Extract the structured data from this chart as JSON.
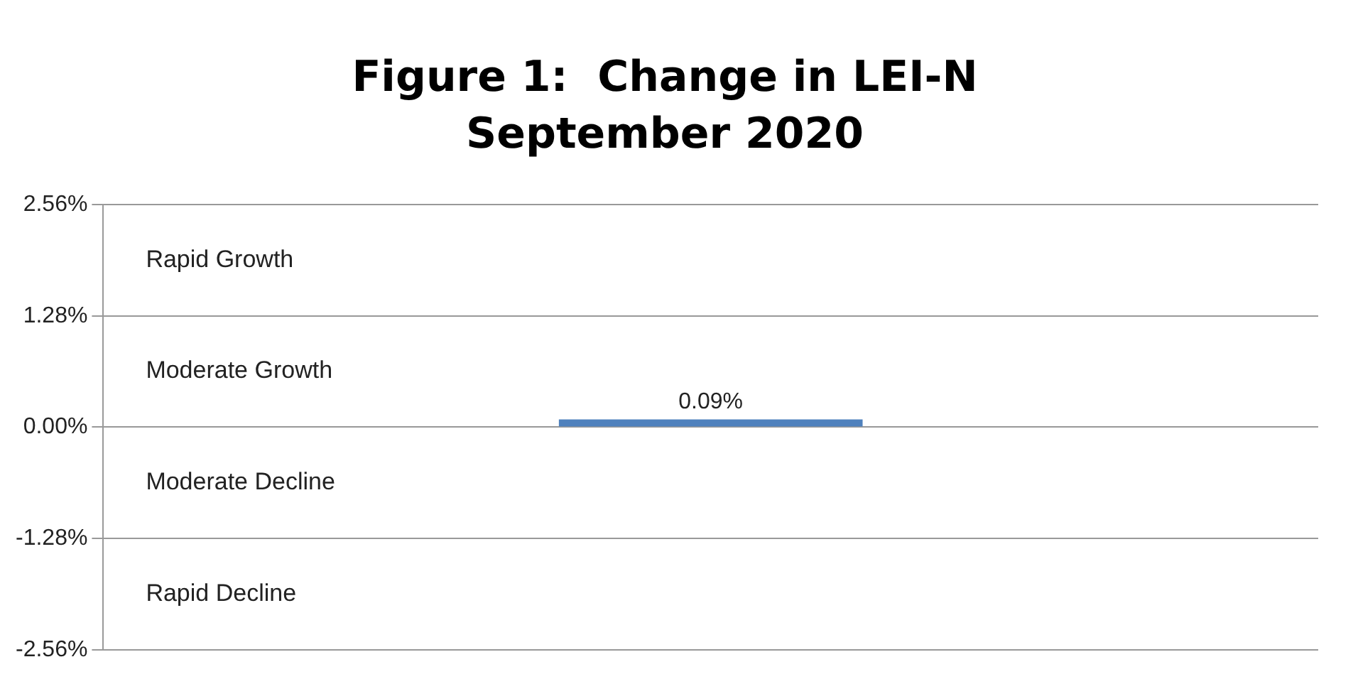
{
  "chart_data": {
    "type": "bar",
    "title": "Figure 1:  Change in LEI-N",
    "subtitle": "September 2020",
    "categories": [
      null
    ],
    "values": [
      0.09
    ],
    "color": "#4f81bd",
    "value_labels": [
      "0.09%"
    ],
    "ylim": [
      -2.56,
      2.56
    ],
    "yticks": [
      {
        "value": -2.56,
        "label": "-2.56%"
      },
      {
        "value": -1.28,
        "label": "-1.28%"
      },
      {
        "value": 0,
        "label": "0.00%"
      },
      {
        "value": 1.28,
        "label": "1.28%"
      },
      {
        "value": 2.56,
        "label": "2.56%"
      }
    ],
    "grid": "y",
    "legend": false,
    "annotations": [
      "Rapid Growth",
      "Moderate Growth",
      "Moderate Decline",
      "Rapid Decline"
    ]
  }
}
